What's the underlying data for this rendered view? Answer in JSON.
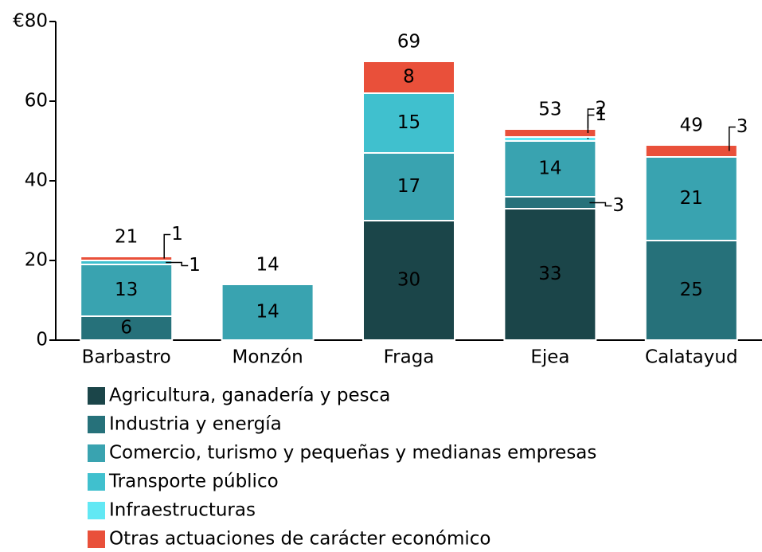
{
  "chart_data": {
    "type": "bar",
    "stacked": true,
    "categories": [
      "Barbastro",
      "Monzón",
      "Fraga",
      "Ejea",
      "Calatayud"
    ],
    "series": [
      {
        "name": "Agricultura, ganadería y pesca",
        "color": "#1b4549",
        "values": [
          null,
          null,
          30,
          33,
          null
        ]
      },
      {
        "name": "Industria y energía",
        "color": "#26717a",
        "values": [
          6,
          null,
          null,
          3,
          25
        ]
      },
      {
        "name": "Comercio, turismo y pequeñas y medianas empresas",
        "color": "#39a3b0",
        "values": [
          13,
          14,
          17,
          14,
          21
        ]
      },
      {
        "name": "Transporte público",
        "color": "#40c0ce",
        "values": [
          1,
          null,
          15,
          null,
          null
        ]
      },
      {
        "name": "Infraestructuras",
        "color": "#62e8f4",
        "values": [
          null,
          null,
          null,
          1,
          null
        ]
      },
      {
        "name": "Otras actuaciones de carácter económico",
        "color": "#e9503a",
        "values": [
          1,
          null,
          8,
          2,
          3
        ]
      }
    ],
    "totals": [
      21,
      14,
      69,
      53,
      49
    ],
    "ylim": [
      0,
      80
    ],
    "yticks": [
      0,
      20,
      40,
      60,
      {
        "value": 80,
        "label": "€80"
      }
    ]
  }
}
